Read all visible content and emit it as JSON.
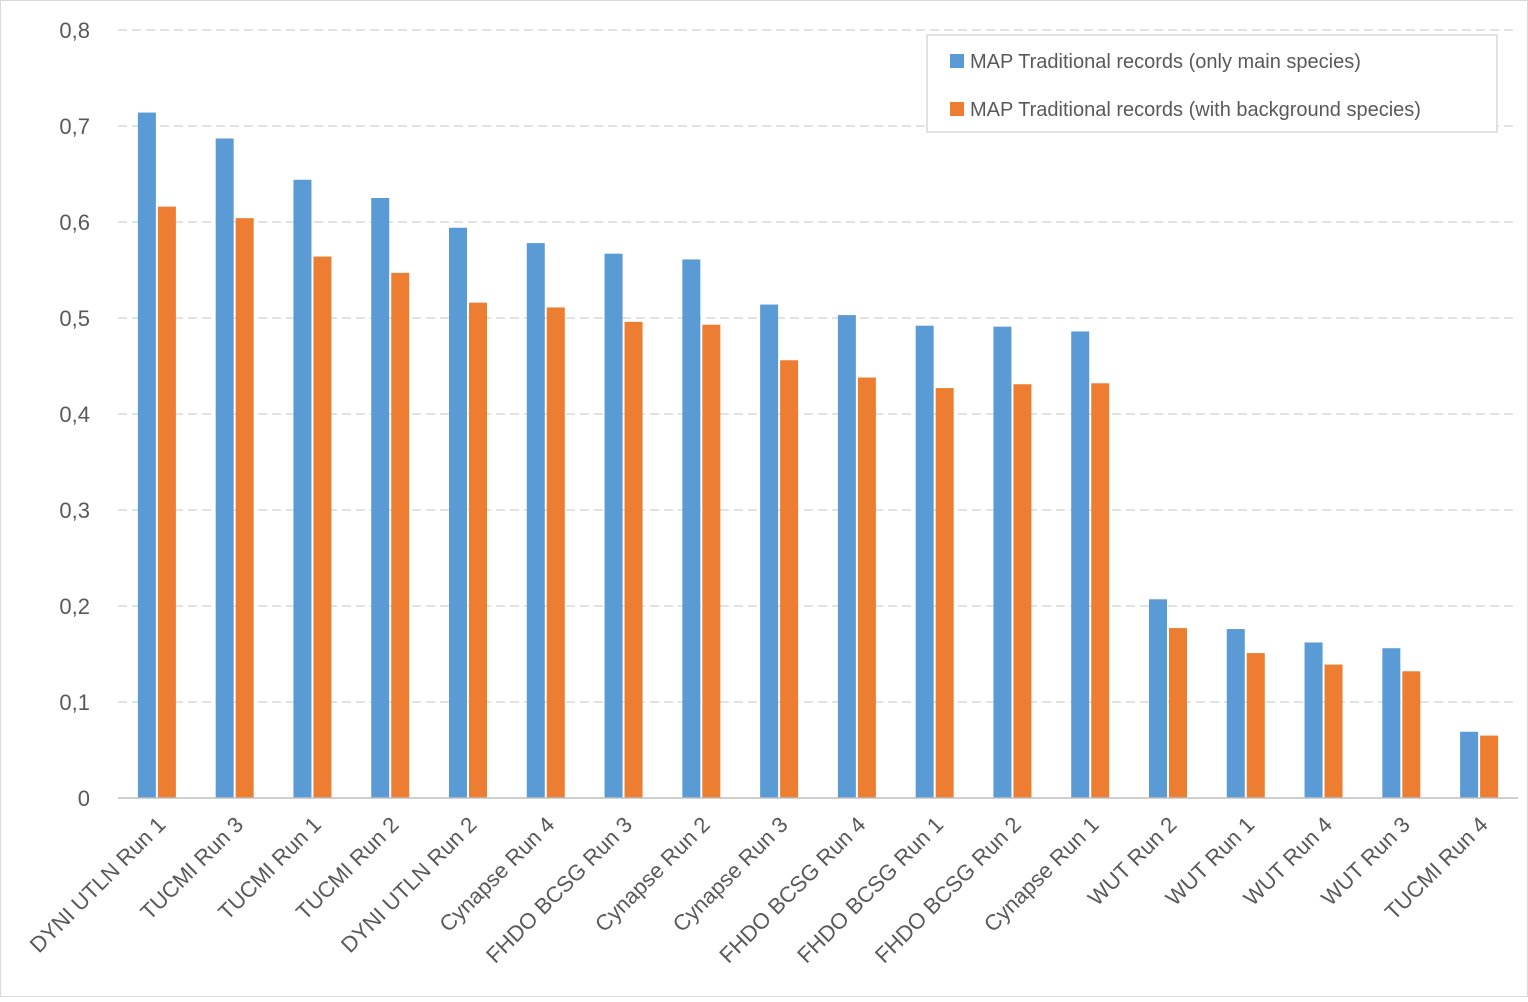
{
  "chart_data": {
    "type": "bar",
    "title": "",
    "xlabel": "",
    "ylabel": "",
    "ylim": [
      0,
      0.8
    ],
    "y_ticks": [
      "0",
      "0,1",
      "0,2",
      "0,3",
      "0,4",
      "0,5",
      "0,6",
      "0,7",
      "0,8"
    ],
    "grid": "horizontal dashed",
    "legend_position": "top-right",
    "categories": [
      "DYNI UTLN Run 1",
      "TUCMI Run 3",
      "TUCMI Run 1",
      "TUCMI Run 2",
      "DYNI UTLN Run 2",
      "Cynapse Run 4",
      "FHDO BCSG Run 3",
      "Cynapse Run 2",
      "Cynapse Run 3",
      "FHDO BCSG Run 4",
      "FHDO BCSG Run 1",
      "FHDO BCSG Run 2",
      "Cynapse Run 1",
      "WUT Run 2",
      "WUT Run 1",
      "WUT Run 4",
      "WUT Run 3",
      "TUCMI Run 4"
    ],
    "series": [
      {
        "name": "MAP Traditional records (only main species)",
        "color": "#5b9bd5",
        "values": [
          0.714,
          0.687,
          0.644,
          0.625,
          0.594,
          0.578,
          0.567,
          0.561,
          0.514,
          0.503,
          0.492,
          0.491,
          0.486,
          0.207,
          0.176,
          0.162,
          0.156,
          0.069
        ]
      },
      {
        "name": "MAP Traditional records (with background species)",
        "color": "#ed7d31",
        "values": [
          0.616,
          0.604,
          0.564,
          0.547,
          0.516,
          0.511,
          0.496,
          0.493,
          0.456,
          0.438,
          0.427,
          0.431,
          0.432,
          0.177,
          0.151,
          0.139,
          0.132,
          0.065
        ]
      }
    ]
  }
}
